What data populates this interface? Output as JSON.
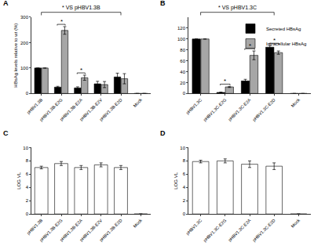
{
  "chart_data": [
    {
      "type": "bar",
      "panel": "A",
      "ylabel": "HBsAg levels relative to wt (%)",
      "categories": [
        "pHBV1.3B",
        "pHBV1.3B-E2G",
        "pHBV1.3B-E2A",
        "pHBV1.3B-E2V",
        "pHBV1.3B-E2D",
        "Mock"
      ],
      "series": [
        {
          "name": "Secreted HBsAg",
          "color": "#000000",
          "values": [
            100,
            25,
            22,
            38,
            65,
            0
          ],
          "errors": [
            0,
            3,
            4,
            10,
            15,
            0
          ]
        },
        {
          "name": "Intracellular HBsAg",
          "color": "#a6a6a6",
          "values": [
            100,
            248,
            62,
            35,
            58,
            0
          ],
          "errors": [
            0,
            15,
            10,
            12,
            20,
            0
          ]
        }
      ],
      "ylim": [
        0,
        300
      ],
      "yticks": [
        0,
        100,
        200,
        300
      ],
      "annotations": [
        {
          "text": "*",
          "category": "pHBV1.3B-E2G"
        },
        {
          "text": "*",
          "category": "pHBV1.3B-E2A"
        }
      ],
      "bracket": {
        "text": "* VS pHBV1.3B",
        "from": "pHBV1.3B",
        "to": "pHBV1.3B-E2D"
      }
    },
    {
      "type": "bar",
      "panel": "B",
      "categories": [
        "pHBV1.3C",
        "pHBV1.3C-E2G",
        "pHBV1.3C-E2A",
        "pHBV1.3C-E2D",
        "Mock"
      ],
      "series": [
        {
          "name": "Secreted HBsAg",
          "color": "#000000",
          "values": [
            100,
            2,
            23,
            85,
            0
          ],
          "errors": [
            0,
            0.5,
            3,
            3,
            0
          ]
        },
        {
          "name": "Intracellular HBsAg",
          "color": "#a6a6a6",
          "values": [
            100,
            12,
            70,
            75,
            0
          ],
          "errors": [
            0,
            1,
            8,
            3,
            0
          ]
        }
      ],
      "ylim": [
        0,
        140
      ],
      "yticks": [
        0,
        20,
        40,
        60,
        80,
        100,
        120
      ],
      "legend": "upper right",
      "annotations": [
        {
          "text": "*",
          "category": "pHBV1.3C-E2G"
        },
        {
          "text": "*",
          "category": "pHBV1.3C-E2A"
        },
        {
          "text": "*",
          "category": "pHBV1.3C-E2D"
        }
      ],
      "bracket": {
        "text": "* VS pHBV1.3C",
        "from": "pHBV1.3C",
        "to": "pHBV1.3C-E2D"
      }
    },
    {
      "type": "bar",
      "panel": "C",
      "ylabel": "LOG VL",
      "categories": [
        "pHBV1.3B",
        "pHBV1.3B-E2G",
        "pHBV1.3B-E2A",
        "pHBV1.3B-E2V",
        "pHBV1.3B-E2D",
        "Mock"
      ],
      "values": [
        7.0,
        7.6,
        7.0,
        7.4,
        7.0,
        0
      ],
      "errors": [
        0.2,
        0.3,
        0.3,
        0.3,
        0.3,
        0
      ],
      "color": "#ffffff",
      "ylim": [
        0,
        10
      ],
      "yticks": [
        0,
        2,
        4,
        6,
        8,
        10
      ]
    },
    {
      "type": "bar",
      "panel": "D",
      "ylabel": "LOG VL",
      "categories": [
        "pHBV1.3C",
        "pHBV1.3C-E2G",
        "pHBV1.3C-E2A",
        "pHBV1.3C-E2D",
        "Mock"
      ],
      "values": [
        7.9,
        8.0,
        7.5,
        7.2,
        0
      ],
      "errors": [
        0.2,
        0.3,
        0.5,
        0.5,
        0
      ],
      "color": "#ffffff",
      "ylim": [
        0,
        10
      ],
      "yticks": [
        0,
        2,
        4,
        6,
        8,
        10
      ]
    }
  ]
}
